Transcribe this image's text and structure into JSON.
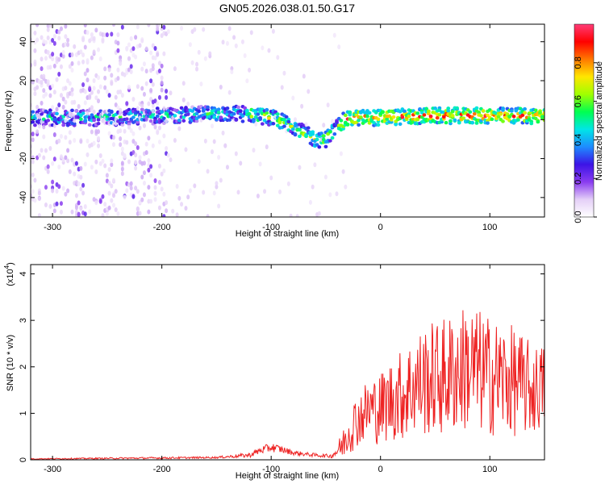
{
  "title": "GN05.2026.038.01.50.G17",
  "chart_data": [
    {
      "type": "heatmap",
      "xlabel": "Height of straight line (km)",
      "ylabel": "Frequency (Hz)",
      "xlim": [
        -320,
        150
      ],
      "ylim": [
        -50,
        49
      ],
      "xticks": [
        -300,
        -200,
        -100,
        0,
        100
      ],
      "xtick_labels": [
        "-300",
        "-200",
        "-100",
        "0",
        "100"
      ],
      "yticks": [
        -40,
        -20,
        0,
        20,
        40
      ],
      "ytick_labels": [
        "-40",
        "-20",
        "0",
        "20",
        "40"
      ],
      "ridge": {
        "x": [
          -320,
          -250,
          -200,
          -150,
          -120,
          -100,
          -80,
          -70,
          -60,
          -55,
          -50,
          -45,
          -40,
          -35,
          -30,
          -20,
          -10,
          0,
          50,
          100,
          150
        ],
        "y": [
          1,
          1,
          2,
          3,
          3,
          1,
          -3,
          -7,
          -10,
          -11,
          -10,
          -7,
          -4,
          -1,
          0,
          1,
          1,
          1,
          2,
          2,
          2
        ]
      },
      "colorbar": {
        "label": "Normalized spectral amplitude",
        "range": [
          0,
          1
        ],
        "ticks": [
          0,
          0.2,
          0.4,
          0.6,
          0.8
        ],
        "tick_labels": [
          "0.0",
          "0.2",
          "0.4",
          "0.6",
          "0.8"
        ],
        "colors": [
          "#ffffff",
          "#e4cff7",
          "#8a3cf0",
          "#3c14e6",
          "#1e8cff",
          "#00e6e6",
          "#00ff50",
          "#a0ff00",
          "#ffe600",
          "#ff7800",
          "#ff0000",
          "#ff3c78"
        ]
      }
    },
    {
      "type": "line",
      "xlabel": "Height of straight line (km)",
      "ylabel": "SNR (10 * v/v)",
      "multiplier_base": "(x10",
      "multiplier_exp": "4",
      "multiplier_close": ")",
      "xlim": [
        -320,
        150
      ],
      "ylim": [
        0,
        4.2
      ],
      "xticks": [
        -300,
        -200,
        -100,
        0,
        100
      ],
      "xtick_labels": [
        "-300",
        "-200",
        "-100",
        "0",
        "100"
      ],
      "yticks": [
        0,
        1,
        2,
        3,
        4
      ],
      "ytick_labels": [
        "0",
        "1",
        "2",
        "3",
        "4"
      ],
      "color": "#ee2222",
      "envelope": {
        "x": [
          -320,
          -200,
          -150,
          -120,
          -110,
          -100,
          -90,
          -80,
          -60,
          -45,
          -35,
          -30,
          -20,
          -10,
          0,
          10,
          20,
          30,
          40,
          60,
          80,
          100,
          120,
          140,
          150
        ],
        "mean": [
          0.02,
          0.04,
          0.05,
          0.1,
          0.2,
          0.27,
          0.22,
          0.15,
          0.1,
          0.08,
          0.3,
          0.6,
          0.9,
          1.1,
          1.1,
          1.3,
          1.4,
          1.6,
          1.7,
          1.8,
          2.0,
          1.8,
          1.7,
          1.5,
          1.6
        ],
        "spread": [
          0.01,
          0.02,
          0.02,
          0.05,
          0.08,
          0.1,
          0.08,
          0.05,
          0.04,
          0.04,
          0.3,
          0.5,
          0.6,
          0.7,
          0.8,
          0.9,
          1.0,
          1.1,
          1.2,
          1.3,
          1.4,
          1.3,
          1.2,
          1.0,
          0.9
        ]
      }
    }
  ]
}
